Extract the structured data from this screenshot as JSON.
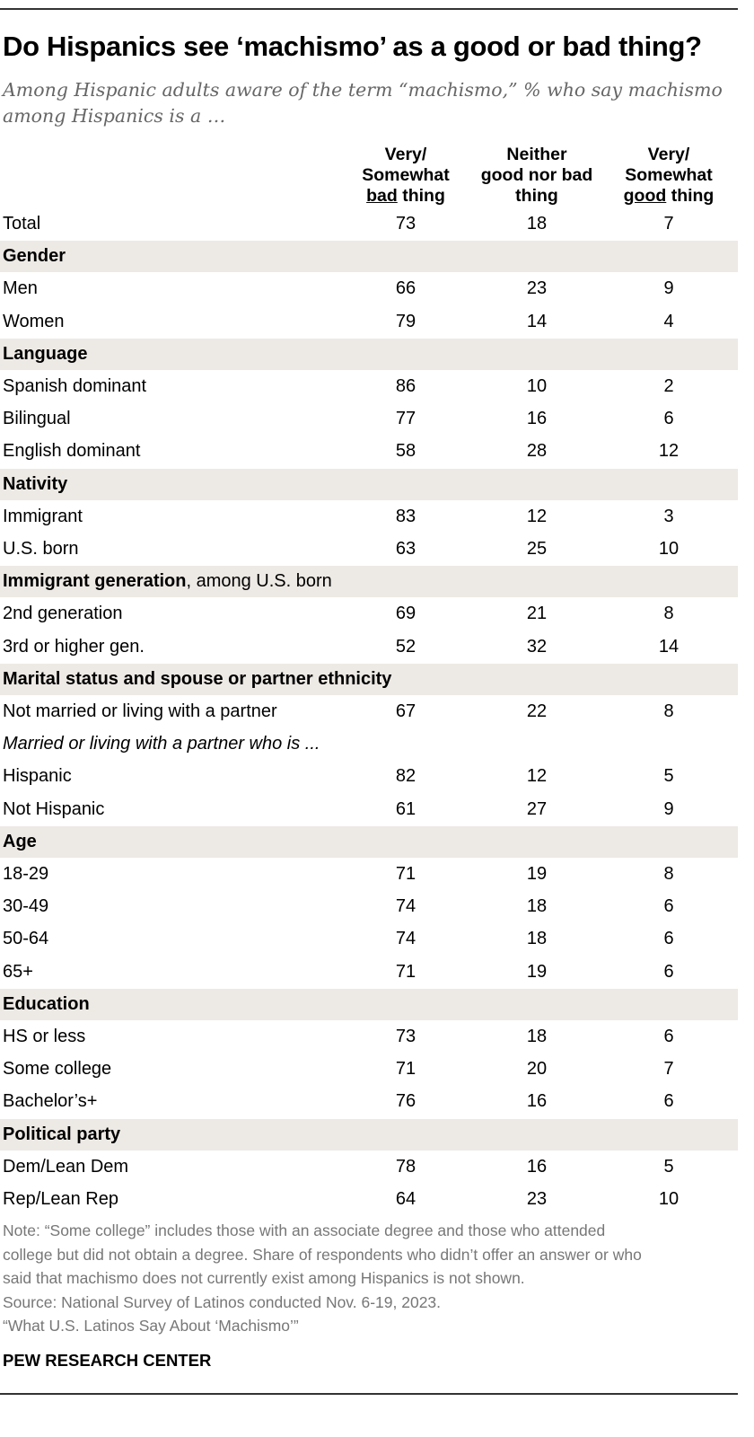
{
  "title": "Do Hispanics see ‘machismo’ as a good or bad thing?",
  "subtitle": "Among Hispanic adults aware of the term “machismo,” % who say machismo among Hispanics is a …",
  "chart_data": {
    "type": "table",
    "columns": [
      {
        "line1": "Very/",
        "line2": "Somewhat",
        "line3_underlined": "bad",
        "line3_rest": " thing"
      },
      {
        "line1": "Neither",
        "line2": "good nor bad",
        "line3_underlined": "",
        "line3_rest": "thing"
      },
      {
        "line1": "Very/",
        "line2": "Somewhat",
        "line3_underlined": "good",
        "line3_rest": " thing"
      }
    ],
    "rows": [
      {
        "label": "Total",
        "values": [
          "73",
          "18",
          "7"
        ]
      },
      {
        "label": "Gender",
        "header": true
      },
      {
        "label": "Men",
        "values": [
          "66",
          "23",
          "9"
        ]
      },
      {
        "label": "Women",
        "values": [
          "79",
          "14",
          "4"
        ]
      },
      {
        "label": "Language",
        "header": true
      },
      {
        "label": "Spanish dominant",
        "values": [
          "86",
          "10",
          "2"
        ]
      },
      {
        "label": "Bilingual",
        "values": [
          "77",
          "16",
          "6"
        ]
      },
      {
        "label": "English dominant",
        "values": [
          "58",
          "28",
          "12"
        ]
      },
      {
        "label": "Nativity",
        "header": true
      },
      {
        "label": "Immigrant",
        "values": [
          "83",
          "12",
          "3"
        ]
      },
      {
        "label": "U.S. born",
        "values": [
          "63",
          "25",
          "10"
        ]
      },
      {
        "label": "Immigrant generation",
        "suffix": ", among U.S. born",
        "header": true
      },
      {
        "label": "2nd generation",
        "values": [
          "69",
          "21",
          "8"
        ]
      },
      {
        "label": "3rd or higher gen.",
        "values": [
          "52",
          "32",
          "14"
        ]
      },
      {
        "label": "Marital status and spouse or partner ethnicity",
        "header": true
      },
      {
        "label": "Not married or living with a partner",
        "values": [
          "67",
          "22",
          "8"
        ]
      },
      {
        "label": "Married or living with a partner who is ...",
        "italic": true
      },
      {
        "label": "Hispanic",
        "values": [
          "82",
          "12",
          "5"
        ]
      },
      {
        "label": "Not Hispanic",
        "values": [
          "61",
          "27",
          "9"
        ]
      },
      {
        "label": "Age",
        "header": true
      },
      {
        "label": "18-29",
        "values": [
          "71",
          "19",
          "8"
        ]
      },
      {
        "label": "30-49",
        "values": [
          "74",
          "18",
          "6"
        ]
      },
      {
        "label": "50-64",
        "values": [
          "74",
          "18",
          "6"
        ]
      },
      {
        "label": "65+",
        "values": [
          "71",
          "19",
          "6"
        ]
      },
      {
        "label": "Education",
        "header": true
      },
      {
        "label": "HS or less",
        "values": [
          "73",
          "18",
          "6"
        ]
      },
      {
        "label": "Some college",
        "values": [
          "71",
          "20",
          "7"
        ]
      },
      {
        "label": "Bachelor’s+",
        "values": [
          "76",
          "16",
          "6"
        ]
      },
      {
        "label": "Political party",
        "header": true
      },
      {
        "label": "Dem/Lean Dem",
        "values": [
          "78",
          "16",
          "5"
        ]
      },
      {
        "label": "Rep/Lean Rep",
        "values": [
          "64",
          "23",
          "10"
        ]
      }
    ]
  },
  "notes": [
    "Note: “Some college” includes those with an associate degree and those who attended",
    "college but did not obtain a degree. Share of respondents who didn’t offer an answer or who",
    "said that machismo does not currently exist among Hispanics is not shown.",
    "Source: National Survey of Latinos conducted Nov. 6-19, 2023.",
    "“What U.S. Latinos Say About ‘Machismo’”"
  ],
  "brand": "PEW RESEARCH CENTER"
}
